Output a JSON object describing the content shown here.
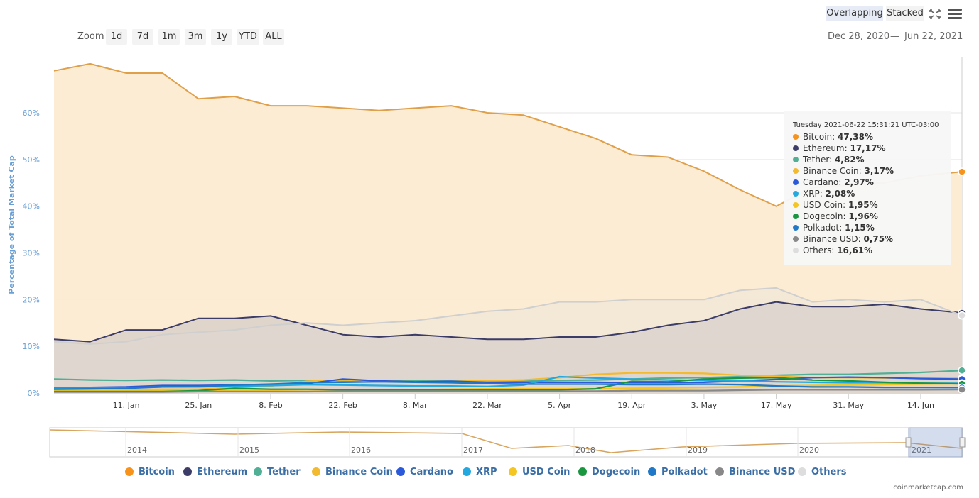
{
  "toolbar": {
    "overlapping_label": "Overlapping",
    "stacked_label": "Stacked",
    "fullscreen_icon": "expand-icon",
    "menu_icon": "hamburger-menu-icon"
  },
  "zoom": {
    "label": "Zoom",
    "buttons": [
      "1d",
      "7d",
      "1m",
      "3m",
      "1y",
      "YTD",
      "ALL"
    ]
  },
  "range": {
    "from": "Dec 28, 2020",
    "sep": "—",
    "to": "Jun 22, 2021"
  },
  "tooltip": {
    "header": "Tuesday 2021-06-22 15:31:21 UTC-03:00",
    "rows": [
      {
        "name": "Bitcoin",
        "value": "47,38%",
        "color": "#f7931a"
      },
      {
        "name": "Ethereum",
        "value": "17,17%",
        "color": "#3c3c68"
      },
      {
        "name": "Tether",
        "value": "4,82%",
        "color": "#50af95"
      },
      {
        "name": "Binance Coin",
        "value": "3,17%",
        "color": "#f3ba2f"
      },
      {
        "name": "Cardano",
        "value": "2,97%",
        "color": "#2a5ada"
      },
      {
        "name": "XRP",
        "value": "2,08%",
        "color": "#23a8e0"
      },
      {
        "name": "USD Coin",
        "value": "1,95%",
        "color": "#f5c521"
      },
      {
        "name": "Dogecoin",
        "value": "1,96%",
        "color": "#1a9641"
      },
      {
        "name": "Polkadot",
        "value": "1,15%",
        "color": "#1f78c8"
      },
      {
        "name": "Binance USD",
        "value": "0,75%",
        "color": "#888888"
      },
      {
        "name": "Others",
        "value": "16,61%",
        "color": "#dddddd"
      }
    ]
  },
  "credit": "coinmarketcap.com",
  "navigator": {
    "years": [
      "2014",
      "2015",
      "2016",
      "2017",
      "2018",
      "2019",
      "2020",
      "2021"
    ]
  },
  "chart_data": {
    "type": "area",
    "title": "",
    "ylabel": "Percentage of Total Market Cap",
    "xlabel": "",
    "ylim": [
      0,
      72
    ],
    "y_ticks": [
      "0%",
      "10%",
      "20%",
      "30%",
      "40%",
      "50%",
      "60%"
    ],
    "x_ticks": [
      "11. Jan",
      "25. Jan",
      "8. Feb",
      "22. Feb",
      "8. Mar",
      "22. Mar",
      "5. Apr",
      "19. Apr",
      "3. May",
      "17. May",
      "31. May",
      "14. Jun"
    ],
    "x": [
      "2020-12-28",
      "2021-01-04",
      "2021-01-11",
      "2021-01-18",
      "2021-01-25",
      "2021-02-01",
      "2021-02-08",
      "2021-02-15",
      "2021-02-22",
      "2021-03-01",
      "2021-03-08",
      "2021-03-15",
      "2021-03-22",
      "2021-03-29",
      "2021-04-05",
      "2021-04-12",
      "2021-04-19",
      "2021-04-26",
      "2021-05-03",
      "2021-05-10",
      "2021-05-17",
      "2021-05-24",
      "2021-05-31",
      "2021-06-07",
      "2021-06-14",
      "2021-06-22"
    ],
    "grid": true,
    "legend_position": "bottom",
    "series": [
      {
        "name": "Bitcoin",
        "color": "#f7931a",
        "values": [
          69,
          70.5,
          68.5,
          68.5,
          63,
          63.5,
          61.5,
          61.5,
          61,
          60.5,
          61,
          61.5,
          60,
          59.5,
          57,
          54.5,
          51,
          50.5,
          47.5,
          43.5,
          40,
          44,
          44.5,
          45,
          46.5,
          47.38
        ]
      },
      {
        "name": "Ethereum",
        "color": "#3c3c68",
        "values": [
          11.5,
          11,
          13.5,
          13.5,
          16,
          16,
          16.5,
          14.5,
          12.5,
          12,
          12.5,
          12,
          11.5,
          11.5,
          12,
          12,
          13,
          14.5,
          15.5,
          18,
          19.5,
          18.5,
          18.5,
          19,
          18,
          17.17
        ]
      },
      {
        "name": "Tether",
        "color": "#50af95",
        "values": [
          3,
          2.8,
          2.7,
          2.8,
          2.7,
          2.8,
          2.6,
          2.7,
          2.6,
          2.7,
          2.6,
          2.6,
          2.6,
          2.6,
          2.7,
          2.8,
          3,
          3.2,
          3.3,
          3.5,
          3.8,
          4,
          4,
          4.2,
          4.4,
          4.82
        ]
      },
      {
        "name": "Binance Coin",
        "color": "#f3ba2f",
        "values": [
          0.6,
          0.7,
          0.7,
          0.8,
          0.8,
          1.2,
          1.5,
          2.5,
          2.8,
          2.6,
          2.4,
          2.5,
          2.6,
          2.8,
          3.3,
          4,
          4.3,
          4.3,
          4.2,
          3.8,
          3.6,
          3.3,
          3.3,
          3.2,
          3.2,
          3.17
        ]
      },
      {
        "name": "Cardano",
        "color": "#2a5ada",
        "values": [
          1.2,
          1.2,
          1.3,
          1.6,
          1.6,
          1.7,
          1.8,
          2,
          3,
          2.6,
          2.4,
          2.5,
          2.3,
          2.3,
          2.3,
          2.3,
          2.2,
          2.2,
          2.3,
          2.6,
          2.9,
          3.3,
          3.4,
          3.3,
          3.1,
          2.97
        ]
      },
      {
        "name": "XRP",
        "color": "#23a8e0",
        "values": [
          1,
          1,
          1.1,
          1.3,
          1.3,
          1.5,
          1.6,
          1.8,
          1.7,
          1.6,
          1.5,
          1.5,
          1.4,
          1.7,
          3.5,
          3.2,
          3,
          2.8,
          2.7,
          2.6,
          2.4,
          2.3,
          2.2,
          2.2,
          2.1,
          2.08
        ]
      },
      {
        "name": "USD Coin",
        "color": "#f5c521",
        "values": [
          0.4,
          0.5,
          0.5,
          0.5,
          0.6,
          0.6,
          0.6,
          0.7,
          0.7,
          0.7,
          0.7,
          0.8,
          0.9,
          0.9,
          0.9,
          0.9,
          1,
          1.1,
          1.2,
          1.3,
          1.5,
          1.6,
          1.7,
          1.8,
          1.9,
          1.95
        ]
      },
      {
        "name": "Dogecoin",
        "color": "#1a9641",
        "values": [
          0.3,
          0.3,
          0.3,
          0.3,
          0.5,
          1,
          0.8,
          0.8,
          0.7,
          0.7,
          0.6,
          0.6,
          0.6,
          0.6,
          0.7,
          0.9,
          2.5,
          2.4,
          3,
          3.2,
          3.3,
          2.8,
          2.6,
          2.3,
          2.1,
          1.96
        ]
      },
      {
        "name": "Polkadot",
        "color": "#1f78c8",
        "values": [
          0.8,
          0.9,
          1,
          1.3,
          1.4,
          1.7,
          1.9,
          2.2,
          2.3,
          2.4,
          2.3,
          2.2,
          2,
          1.9,
          1.9,
          1.9,
          1.8,
          1.8,
          1.9,
          1.8,
          1.5,
          1.3,
          1.3,
          1.2,
          1.2,
          1.15
        ]
      },
      {
        "name": "Binance USD",
        "color": "#888888",
        "values": [
          0.2,
          0.2,
          0.2,
          0.2,
          0.3,
          0.3,
          0.3,
          0.3,
          0.4,
          0.4,
          0.4,
          0.4,
          0.4,
          0.4,
          0.4,
          0.4,
          0.5,
          0.5,
          0.5,
          0.6,
          0.7,
          0.7,
          0.7,
          0.7,
          0.7,
          0.75
        ]
      },
      {
        "name": "Others",
        "color": "#dddddd",
        "values": [
          11,
          10.5,
          11,
          12.5,
          13,
          13.5,
          14.5,
          15,
          14.5,
          15,
          15.5,
          16.5,
          17.5,
          18,
          19.5,
          19.5,
          20,
          20,
          20,
          22,
          22.5,
          19.5,
          20,
          19.5,
          20,
          16.61
        ]
      }
    ]
  }
}
